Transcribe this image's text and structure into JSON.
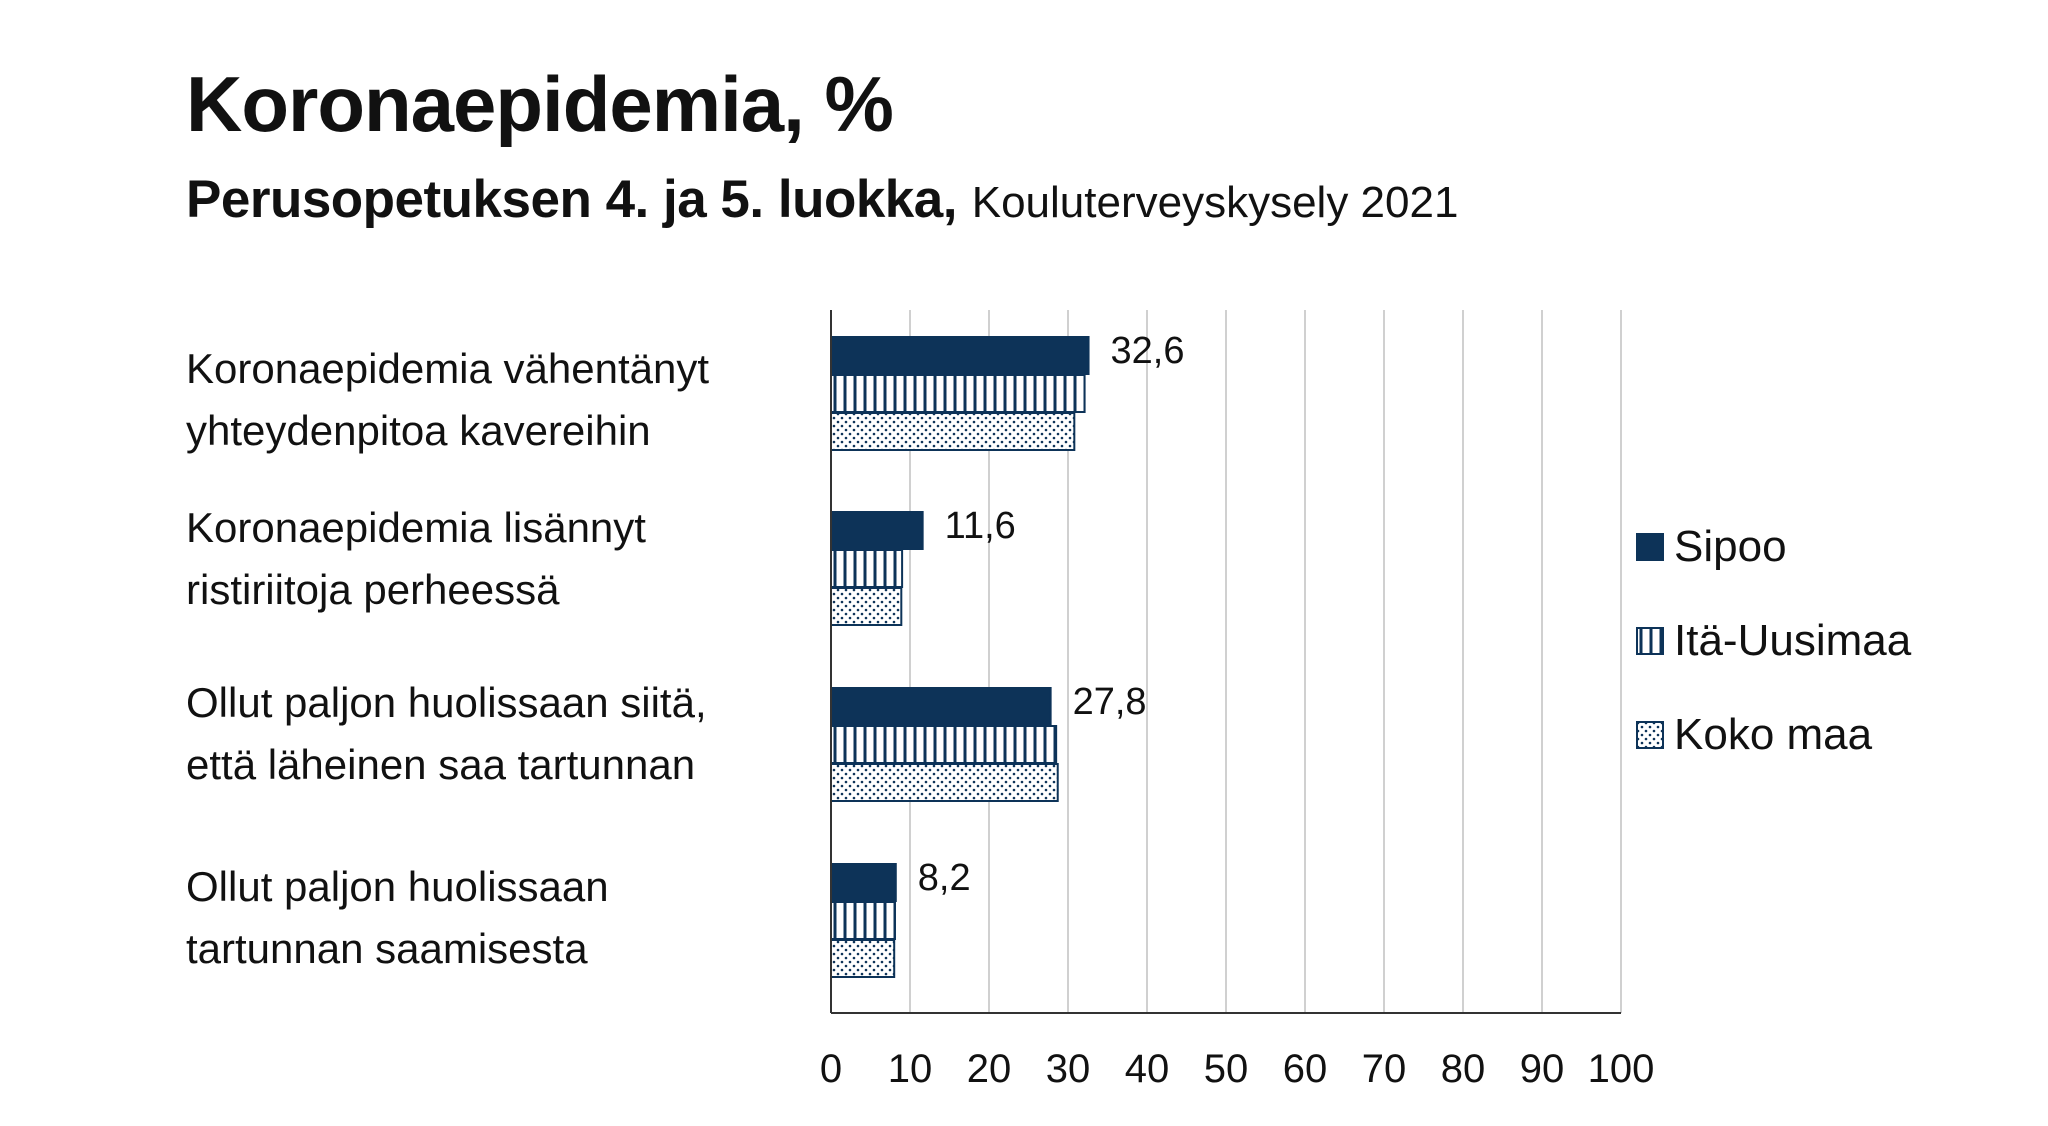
{
  "header": {
    "title": "Koronaepidemia, %",
    "subtitle_bold": "Perusopetuksen 4. ja 5. luokka,",
    "subtitle_source": "Kouluterveyskysely 2021"
  },
  "colors": {
    "sipoo": "#0d3358",
    "outline": "#0d3358",
    "grid": "#d0d0d0",
    "axis": "#333333"
  },
  "chart_data": {
    "type": "bar",
    "orientation": "horizontal",
    "title": "Koronaepidemia, %",
    "categories": [
      "Koronaepidemia vähentänyt yhteydenpitoa kavereihin",
      "Koronaepidemia lisännyt ristiriitoja perheessä",
      "Ollut paljon huolissaan siitä, että läheinen saa tartunnan",
      "Ollut paljon huolissaan tartunnan saamisesta"
    ],
    "category_lines": [
      [
        "Koronaepidemia vähentänyt",
        "yhteydenpitoa kavereihin"
      ],
      [
        "Koronaepidemia lisännyt",
        "ristiriitoja perheessä"
      ],
      [
        "Ollut paljon huolissaan siitä,",
        "että läheinen saa tartunnan"
      ],
      [
        "Ollut paljon huolissaan",
        "tartunnan saamisesta"
      ]
    ],
    "series": [
      {
        "name": "Sipoo",
        "pattern": "solid",
        "values": [
          32.6,
          11.6,
          27.8,
          8.2
        ],
        "labels": [
          "32,6",
          "11,6",
          "27,8",
          "8,2"
        ]
      },
      {
        "name": "Itä-Uusimaa",
        "pattern": "vertical-lines",
        "values": [
          32.1,
          9.0,
          28.5,
          8.1
        ]
      },
      {
        "name": "Koko maa",
        "pattern": "dots",
        "values": [
          30.8,
          8.9,
          28.7,
          8.0
        ]
      }
    ],
    "xlim": [
      0,
      100
    ],
    "xticks": [
      "0",
      "10",
      "20",
      "30",
      "40",
      "50",
      "60",
      "70",
      "80",
      "90",
      "100"
    ],
    "grid": true,
    "legend_position": "right"
  }
}
